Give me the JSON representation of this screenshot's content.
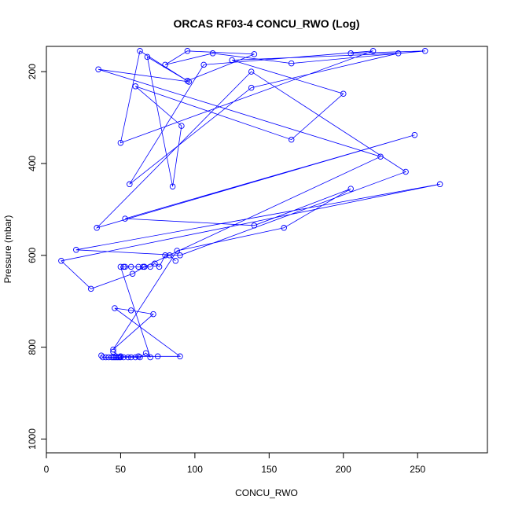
{
  "chart_data": {
    "type": "scatter",
    "title": "ORCAS RF03-4 CONCU_RWO (Log)",
    "xlabel": "CONCU_RWO",
    "ylabel": "Pressure (mbar)",
    "xlim": [
      0,
      297
    ],
    "ylim": [
      1030,
      145
    ],
    "y_inverted": true,
    "xticks": [
      0,
      50,
      100,
      150,
      200,
      250
    ],
    "yticks": [
      200,
      400,
      600,
      800,
      1000
    ],
    "grid": false,
    "legend": "none",
    "marker": "open-circle",
    "connect_points": true,
    "series_color": "#0000ff",
    "series": [
      {
        "x": [
          45,
          50,
          62,
          75,
          90,
          46,
          57,
          72,
          45,
          88,
          160,
          205,
          140,
          53,
          248,
          34,
          138,
          242,
          90,
          20,
          265,
          10,
          30,
          58,
          66,
          225,
          35,
          96,
          68,
          85,
          91,
          60,
          165,
          200,
          125,
          237,
          138,
          56,
          106,
          220,
          50,
          63,
          95,
          140,
          95,
          80,
          112,
          165,
          255,
          205
        ],
        "y": [
          810,
          820,
          820,
          820,
          820,
          715,
          720,
          728,
          805,
          590,
          540,
          455,
          535,
          520,
          338,
          540,
          200,
          418,
          600,
          588,
          445,
          612,
          673,
          640,
          625,
          385,
          195,
          222,
          168,
          450,
          318,
          232,
          348,
          248,
          175,
          160,
          235,
          445,
          185,
          155,
          355,
          155,
          220,
          162,
          155,
          185,
          160,
          182,
          155,
          160
        ]
      },
      {
        "x": [
          37,
          38,
          40,
          42,
          44,
          45,
          46,
          47,
          48,
          49,
          50,
          52,
          55,
          57,
          60,
          63,
          67,
          70,
          50,
          52,
          53,
          57,
          62,
          65,
          66,
          70,
          73,
          76,
          80,
          83,
          87
        ],
        "y": [
          818,
          822,
          822,
          822,
          822,
          822,
          822,
          822,
          822,
          822,
          822,
          822,
          822,
          822,
          822,
          822,
          813,
          822,
          625,
          625,
          625,
          625,
          625,
          625,
          625,
          625,
          618,
          625,
          600,
          600,
          612
        ]
      }
    ]
  }
}
